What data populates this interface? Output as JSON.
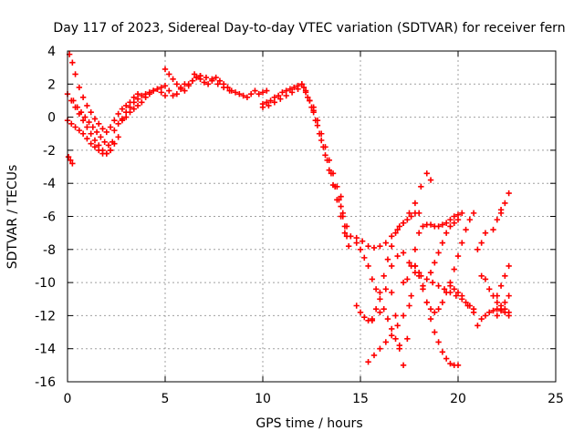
{
  "chart_data": {
    "type": "scatter",
    "title": "Day 117 of 2023, Sidereal Day-to-day VTEC variation (SDTVAR) for receiver fern",
    "xlabel": "GPS time / hours",
    "ylabel": "SDTVAR / TECUs",
    "xlim": [
      0,
      25
    ],
    "ylim": [
      -16,
      4
    ],
    "x_ticks": [
      0,
      5,
      10,
      15,
      20,
      25
    ],
    "y_ticks": [
      -16,
      -14,
      -12,
      -10,
      -8,
      -6,
      -4,
      -2,
      0,
      2,
      4
    ],
    "x_tick_labels": [
      "0",
      "5",
      "10",
      "15",
      "20",
      "25"
    ],
    "y_tick_labels": [
      "-16",
      "-14",
      "-12",
      "-10",
      "-8",
      "-6",
      "-4",
      "-2",
      "0",
      "2",
      "4"
    ],
    "grid": true,
    "marker": "+",
    "color": "#ff0000",
    "series": [
      {
        "x": [
          0.1,
          0.25,
          0.4,
          0.6,
          0.8,
          1.0,
          1.2,
          1.4,
          1.6,
          1.8,
          2.0,
          2.2,
          2.4,
          2.6,
          2.8,
          3.0,
          3.2,
          3.4,
          3.6
        ],
        "y": [
          3.8,
          3.3,
          2.6,
          1.8,
          1.2,
          0.7,
          0.3,
          -0.1,
          -0.4,
          -0.7,
          -0.9,
          -0.6,
          -0.2,
          0.2,
          0.5,
          0.7,
          0.9,
          1.2,
          1.4
        ]
      },
      {
        "x": [
          0.0,
          0.2,
          0.4,
          0.6,
          0.8,
          1.0,
          1.2,
          1.4,
          1.6,
          1.8,
          2.0,
          2.2,
          2.4,
          2.6
        ],
        "y": [
          1.4,
          1.0,
          0.6,
          0.2,
          -0.2,
          -0.6,
          -1.0,
          -1.4,
          -1.7,
          -2.0,
          -2.2,
          -2.0,
          -1.6,
          -1.2
        ]
      },
      {
        "x": [
          0.0,
          0.2,
          0.4,
          0.6,
          0.8,
          1.0,
          1.2,
          1.4,
          1.6,
          1.8,
          2.0,
          2.2
        ],
        "y": [
          -0.2,
          -0.4,
          -0.6,
          -0.8,
          -1.0,
          -1.3,
          -1.6,
          -1.8,
          -2.0,
          -2.2,
          -2.2,
          -2.0
        ]
      },
      {
        "x": [
          0.05,
          0.15,
          0.25
        ],
        "y": [
          -2.4,
          -2.6,
          -2.8
        ]
      },
      {
        "x": [
          0.3,
          0.5,
          0.7,
          0.9,
          1.1,
          1.3,
          1.5,
          1.7,
          1.9,
          2.1,
          2.3
        ],
        "y": [
          1.0,
          0.6,
          0.3,
          0.0,
          -0.3,
          -0.6,
          -0.9,
          -1.2,
          -1.5,
          -1.7,
          -1.5
        ]
      },
      {
        "x": [
          2.4,
          2.6,
          2.8,
          3.0,
          3.2,
          3.4,
          3.6,
          3.8,
          4.0,
          4.2,
          4.4,
          4.6,
          4.8,
          5.0,
          5.2,
          5.4,
          5.6,
          5.8,
          6.0
        ],
        "y": [
          -0.8,
          -0.4,
          -0.1,
          0.3,
          0.6,
          0.9,
          1.1,
          1.3,
          1.4,
          1.5,
          1.6,
          1.7,
          1.8,
          1.9,
          1.6,
          1.3,
          1.4,
          1.7,
          2.0
        ]
      },
      {
        "x": [
          2.8,
          3.0,
          3.2,
          3.4,
          3.6,
          3.8,
          4.0,
          4.2,
          4.4,
          4.6,
          4.8,
          5.0
        ],
        "y": [
          -0.2,
          0.0,
          0.3,
          0.5,
          0.7,
          0.9,
          1.2,
          1.4,
          1.6,
          1.7,
          1.5,
          1.3
        ]
      },
      {
        "x": [
          5.0,
          5.2,
          5.4,
          5.6,
          5.8,
          6.0,
          6.2,
          6.4,
          6.6,
          6.8
        ],
        "y": [
          2.9,
          2.6,
          2.3,
          2.0,
          1.8,
          1.6,
          1.9,
          2.2,
          2.4,
          2.5
        ]
      },
      {
        "x": [
          6.2,
          6.4,
          6.6,
          6.8,
          7.0,
          7.2,
          7.4,
          7.6,
          7.8,
          8.0,
          8.2,
          8.4,
          8.6,
          8.8,
          9.0,
          9.2,
          9.4,
          9.6,
          9.8,
          10.0,
          10.2
        ],
        "y": [
          2.0,
          2.2,
          2.4,
          2.3,
          2.1,
          2.0,
          2.2,
          2.4,
          2.2,
          2.0,
          1.8,
          1.6,
          1.5,
          1.4,
          1.3,
          1.2,
          1.4,
          1.6,
          1.4,
          1.5,
          1.6
        ]
      },
      {
        "x": [
          6.5,
          6.8,
          7.1,
          7.4,
          7.7,
          8.0,
          8.3
        ],
        "y": [
          2.6,
          2.5,
          2.4,
          2.3,
          2.0,
          1.8,
          1.6
        ]
      },
      {
        "x": [
          10.0,
          10.2,
          10.4,
          10.6,
          10.8,
          11.0,
          11.2,
          11.4,
          11.6,
          11.8,
          12.0,
          12.2,
          12.4,
          12.6
        ],
        "y": [
          0.8,
          0.9,
          1.0,
          1.2,
          1.3,
          1.5,
          1.6,
          1.7,
          1.8,
          1.9,
          2.0,
          1.6,
          1.0,
          0.4
        ]
      },
      {
        "x": [
          10.0,
          10.3,
          10.6,
          10.9,
          11.2,
          11.5,
          11.8,
          12.1
        ],
        "y": [
          0.6,
          0.7,
          0.9,
          1.1,
          1.3,
          1.5,
          1.7,
          1.8
        ]
      },
      {
        "x": [
          12.0,
          12.2,
          12.4,
          12.6,
          12.8,
          13.0,
          13.2,
          13.4,
          13.6,
          13.8,
          14.0,
          14.2
        ],
        "y": [
          2.0,
          1.5,
          1.0,
          0.3,
          -0.5,
          -1.4,
          -2.3,
          -3.2,
          -4.1,
          -5.0,
          -6.0,
          -7.0
        ]
      },
      {
        "x": [
          12.3,
          12.5,
          12.7,
          12.9,
          13.1,
          13.3,
          13.5,
          13.7,
          13.9,
          14.1,
          14.3
        ],
        "y": [
          1.2,
          0.6,
          -0.2,
          -1.0,
          -1.8,
          -2.6,
          -3.4,
          -4.2,
          -5.0,
          -5.8,
          -6.6
        ]
      },
      {
        "x": [
          12.6,
          12.8,
          13.0,
          13.2,
          13.4,
          13.6,
          13.8,
          14.0
        ],
        "y": [
          0.6,
          -0.2,
          -1.0,
          -1.8,
          -2.6,
          -3.4,
          -4.2,
          -4.8
        ]
      },
      {
        "x": [
          14.0,
          14.1,
          14.2,
          14.3,
          14.4
        ],
        "y": [
          -5.4,
          -6.0,
          -6.6,
          -7.2,
          -7.8
        ]
      },
      {
        "x": [
          14.5,
          14.8,
          15.1,
          15.4,
          15.7,
          16.0,
          16.3,
          16.6,
          16.9,
          17.2,
          17.5,
          17.8,
          18.1,
          18.4,
          18.6
        ],
        "y": [
          -7.2,
          -7.3,
          -7.5,
          -7.8,
          -7.9,
          -7.8,
          -7.6,
          -7.2,
          -6.8,
          -6.4,
          -5.8,
          -5.2,
          -4.2,
          -3.4,
          -3.8
        ]
      },
      {
        "x": [
          14.8,
          15.0,
          15.2,
          15.4,
          15.6,
          15.8,
          16.0,
          16.2,
          16.4,
          16.6,
          16.8,
          17.0
        ],
        "y": [
          -7.6,
          -8.0,
          -8.5,
          -9.0,
          -9.8,
          -10.4,
          -11.0,
          -11.6,
          -12.2,
          -12.8,
          -13.4,
          -14.0
        ]
      },
      {
        "x": [
          14.8,
          15.0,
          15.2,
          15.4,
          15.6
        ],
        "y": [
          -11.4,
          -11.8,
          -12.1,
          -12.3,
          -12.3
        ]
      },
      {
        "x": [
          15.4,
          15.7,
          16.0,
          16.3,
          16.6,
          16.9,
          17.2,
          17.5
        ],
        "y": [
          -14.8,
          -14.4,
          -14.0,
          -13.6,
          -13.2,
          -12.6,
          -12.0,
          -11.4
        ]
      },
      {
        "x": [
          15.6,
          15.8,
          16.0,
          16.2,
          16.4,
          16.6,
          16.8,
          17.0,
          17.2,
          17.4,
          17.6,
          17.8,
          18.0
        ],
        "y": [
          -12.2,
          -11.6,
          -10.6,
          -9.6,
          -8.6,
          -7.8,
          -7.0,
          -6.6,
          -6.4,
          -6.2,
          -6.0,
          -5.8,
          -5.8
        ]
      },
      {
        "x": [
          16.6,
          16.8,
          17.0,
          17.2,
          17.4,
          17.6,
          17.8,
          18.0,
          18.2,
          18.4,
          18.6,
          18.8,
          19.0,
          19.2,
          19.4,
          19.6,
          19.8,
          20.0
        ],
        "y": [
          -10.6,
          -12.0,
          -13.8,
          -15.0,
          -13.4,
          -10.8,
          -9.0,
          -9.4,
          -10.2,
          -11.2,
          -12.2,
          -13.0,
          -13.6,
          -14.2,
          -14.6,
          -14.9,
          -15.0,
          -15.0
        ]
      },
      {
        "x": [
          16.0,
          16.3,
          16.6,
          16.9,
          17.2,
          17.5,
          17.8,
          18.1,
          18.4,
          18.7,
          19.0,
          19.3,
          19.6,
          19.9,
          20.2,
          20.5,
          20.8
        ],
        "y": [
          -11.8,
          -10.4,
          -9.0,
          -8.4,
          -8.2,
          -8.8,
          -9.4,
          -9.6,
          -9.8,
          -10.0,
          -10.2,
          -10.4,
          -10.6,
          -10.8,
          -11.0,
          -11.4,
          -11.8
        ]
      },
      {
        "x": [
          17.2,
          17.4,
          17.6,
          17.8,
          18.0,
          18.2,
          18.4,
          18.6,
          18.8,
          19.0,
          19.2,
          19.4,
          19.6,
          19.8,
          20.0,
          20.2
        ],
        "y": [
          -10.0,
          -9.8,
          -9.0,
          -8.0,
          -7.0,
          -6.6,
          -6.5,
          -6.5,
          -6.6,
          -6.6,
          -6.5,
          -6.4,
          -6.2,
          -6.0,
          -5.9,
          -5.8
        ]
      },
      {
        "x": [
          17.8,
          18.0,
          18.2,
          18.4,
          18.6,
          18.8,
          19.0,
          19.2,
          19.4,
          19.6,
          19.8,
          20.0,
          20.2,
          20.4,
          20.6,
          20.8
        ],
        "y": [
          -9.0,
          -9.6,
          -10.4,
          -11.2,
          -11.6,
          -11.8,
          -11.6,
          -11.2,
          -10.6,
          -10.0,
          -9.2,
          -8.4,
          -7.6,
          -6.8,
          -6.2,
          -5.8
        ]
      },
      {
        "x": [
          18.6,
          18.8,
          19.0,
          19.2,
          19.4,
          19.6,
          19.8,
          20.0
        ],
        "y": [
          -9.4,
          -8.8,
          -8.2,
          -7.6,
          -7.0,
          -6.6,
          -6.4,
          -6.2
        ]
      },
      {
        "x": [
          19.6,
          19.8,
          20.0,
          20.2,
          20.4,
          20.6,
          20.8
        ],
        "y": [
          -10.2,
          -10.4,
          -10.6,
          -10.8,
          -11.2,
          -11.4,
          -11.6
        ]
      },
      {
        "x": [
          21.0,
          21.2,
          21.4,
          21.6,
          21.8,
          22.0,
          22.2,
          22.4,
          22.6
        ],
        "y": [
          -12.6,
          -12.2,
          -12.0,
          -11.8,
          -11.7,
          -11.6,
          -11.7,
          -11.8,
          -12.0
        ]
      },
      {
        "x": [
          21.2,
          21.4,
          21.6,
          21.8,
          22.0,
          22.2,
          22.4,
          22.6
        ],
        "y": [
          -9.6,
          -9.8,
          -10.4,
          -10.8,
          -11.2,
          -11.4,
          -11.6,
          -11.8
        ]
      },
      {
        "x": [
          21.0,
          21.2,
          21.4
        ],
        "y": [
          -8.0,
          -7.6,
          -7.0
        ]
      },
      {
        "x": [
          21.8,
          22.0,
          22.2
        ],
        "y": [
          -6.8,
          -6.2,
          -5.6
        ]
      },
      {
        "x": [
          22.2,
          22.4,
          22.6
        ],
        "y": [
          -5.8,
          -5.2,
          -4.6
        ]
      },
      {
        "x": [
          22.0,
          22.2,
          22.4,
          22.6
        ],
        "y": [
          -10.8,
          -10.2,
          -9.6,
          -9.0
        ]
      },
      {
        "x": [
          22.0,
          22.2,
          22.4,
          22.6
        ],
        "y": [
          -12.0,
          -11.6,
          -11.2,
          -10.8
        ]
      }
    ]
  }
}
